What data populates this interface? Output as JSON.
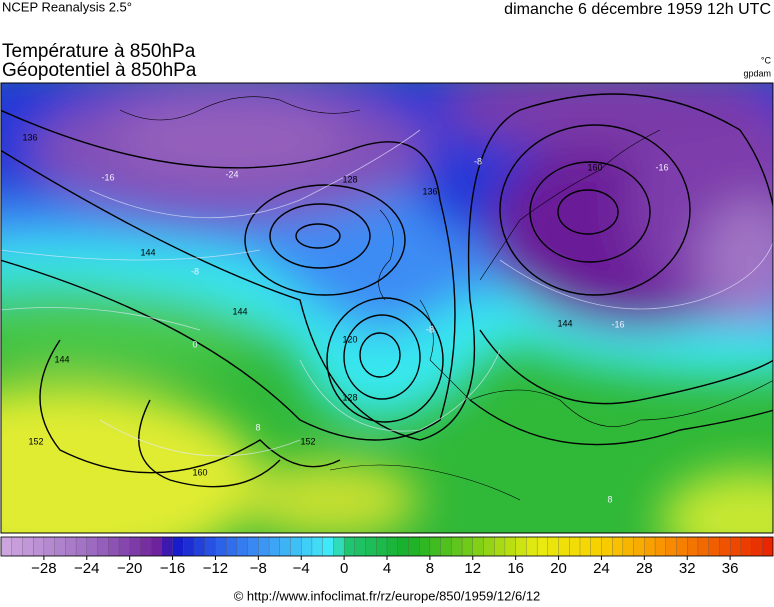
{
  "header": {
    "source": "NCEP Reanalysis 2.5°",
    "date": "dimanche 6 décembre 1959 12h UTC",
    "title_temperature": "Température à 850hPa",
    "title_geopotential": "Géopotentiel à 850hPa",
    "unit_temperature": "°C",
    "unit_geopotential": "gpdam"
  },
  "map_labels": [
    "136",
    "144",
    "128",
    "120",
    "128",
    "136",
    "144",
    "152",
    "152",
    "144",
    "160",
    "144",
    "160",
    "-16",
    "-24",
    "-16",
    "-8",
    "-8",
    "-16",
    "0",
    "8",
    "8",
    "-8"
  ],
  "colorbar": {
    "range": [
      -32,
      40
    ],
    "color_stops": [
      {
        "value": -32,
        "color": "#d0a8e0"
      },
      {
        "value": -24,
        "color": "#a070c4"
      },
      {
        "value": -17,
        "color": "#6a1c98"
      },
      {
        "value": -16,
        "color": "#1414c8"
      },
      {
        "value": -12,
        "color": "#2a5ae8"
      },
      {
        "value": -8,
        "color": "#3c90f4"
      },
      {
        "value": -1,
        "color": "#40f0f8"
      },
      {
        "value": 0,
        "color": "#20c878"
      },
      {
        "value": 6,
        "color": "#18b028"
      },
      {
        "value": 12,
        "color": "#78cc18"
      },
      {
        "value": 18,
        "color": "#e8ec10"
      },
      {
        "value": 24,
        "color": "#f8d000"
      },
      {
        "value": 30,
        "color": "#f89000"
      },
      {
        "value": 40,
        "color": "#e82000"
      }
    ],
    "ticks": [
      {
        "value": -28,
        "label": "−28"
      },
      {
        "value": -24,
        "label": "−24"
      },
      {
        "value": -20,
        "label": "−20"
      },
      {
        "value": -16,
        "label": "−16"
      },
      {
        "value": -12,
        "label": "−12"
      },
      {
        "value": -8,
        "label": "−8"
      },
      {
        "value": -4,
        "label": "−4"
      },
      0,
      4,
      8,
      12,
      16,
      20,
      24,
      28,
      32,
      36
    ]
  },
  "footer": "© http://www.infoclimat.fr/rz/europe/850/1959/12/6/12"
}
